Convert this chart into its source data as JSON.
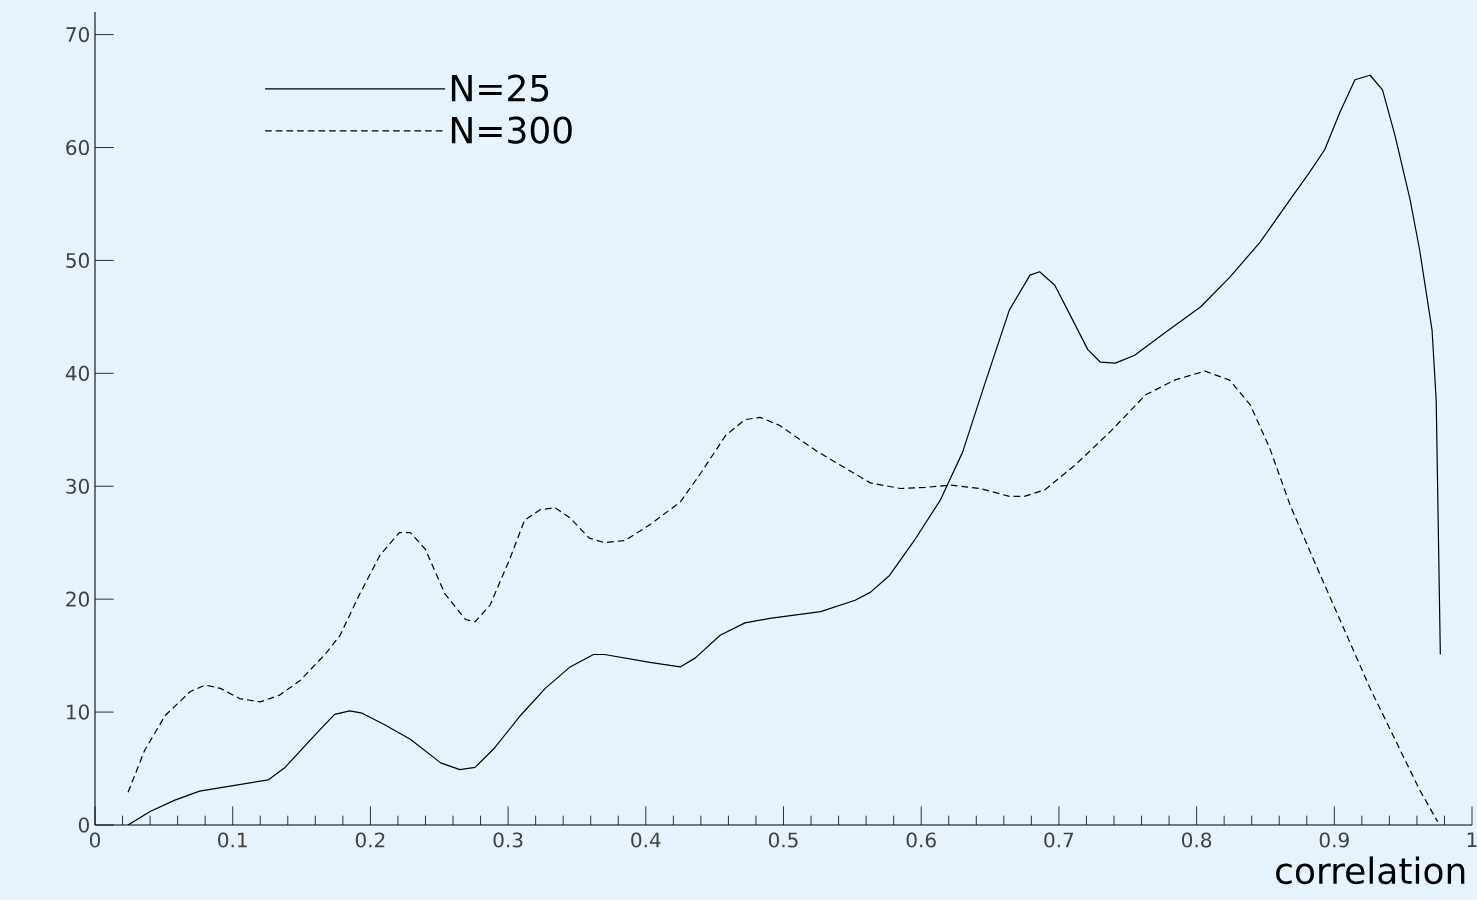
{
  "chart_data": {
    "type": "line",
    "xlabel": "correlation",
    "xlim": [
      0,
      1
    ],
    "ylim": [
      0,
      72
    ],
    "xticks": [
      0,
      0.1,
      0.2,
      0.3,
      0.4,
      0.5,
      0.6,
      0.7,
      0.8,
      0.9,
      1
    ],
    "yticks": [
      0,
      10,
      20,
      30,
      40,
      50,
      60,
      70
    ],
    "grid": false,
    "legend": "top left",
    "marker": "none",
    "series": [
      {
        "name": "N=25",
        "color": "#000000",
        "line_style": "solid",
        "x": [
          0.024,
          0.04,
          0.058,
          0.076,
          0.126,
          0.138,
          0.16,
          0.174,
          0.185,
          0.194,
          0.21,
          0.229,
          0.251,
          0.265,
          0.276,
          0.29,
          0.309,
          0.327,
          0.345,
          0.362,
          0.37,
          0.403,
          0.425,
          0.436,
          0.454,
          0.472,
          0.49,
          0.527,
          0.552,
          0.563,
          0.577,
          0.595,
          0.614,
          0.63,
          0.646,
          0.664,
          0.679,
          0.686,
          0.697,
          0.708,
          0.721,
          0.73,
          0.741,
          0.755,
          0.777,
          0.803,
          0.824,
          0.846,
          0.868,
          0.882,
          0.893,
          0.904,
          0.915,
          0.926,
          0.935,
          0.944,
          0.955,
          0.962,
          0.971,
          0.974,
          0.977
        ],
        "values": [
          0,
          1.2,
          2.2,
          3.0,
          4.0,
          5.1,
          8.0,
          9.8,
          10.1,
          9.9,
          8.9,
          7.6,
          5.5,
          4.9,
          5.1,
          6.8,
          9.7,
          12.1,
          14.0,
          15.1,
          15.1,
          14.4,
          14.0,
          14.8,
          16.8,
          17.9,
          18.3,
          18.9,
          19.9,
          20.6,
          22.1,
          25.2,
          28.8,
          33.0,
          39.0,
          45.6,
          48.7,
          49.0,
          47.8,
          45.2,
          42.1,
          41.0,
          40.9,
          41.6,
          43.6,
          45.9,
          48.5,
          51.6,
          55.4,
          57.8,
          59.8,
          63.1,
          66.0,
          66.4,
          65.1,
          61.1,
          55.4,
          50.9,
          43.8,
          37.6,
          15.1
        ]
      },
      {
        "name": "N=300",
        "color": "#000000",
        "line_style": "dashed",
        "x": [
          0.024,
          0.036,
          0.051,
          0.069,
          0.08,
          0.091,
          0.105,
          0.12,
          0.134,
          0.149,
          0.167,
          0.178,
          0.192,
          0.207,
          0.221,
          0.229,
          0.24,
          0.254,
          0.269,
          0.276,
          0.287,
          0.301,
          0.312,
          0.323,
          0.334,
          0.345,
          0.359,
          0.37,
          0.385,
          0.403,
          0.425,
          0.439,
          0.458,
          0.472,
          0.483,
          0.497,
          0.523,
          0.545,
          0.563,
          0.585,
          0.603,
          0.621,
          0.643,
          0.664,
          0.675,
          0.69,
          0.712,
          0.737,
          0.763,
          0.784,
          0.806,
          0.824,
          0.839,
          0.853,
          0.868,
          0.886,
          0.904,
          0.926,
          0.948,
          0.962,
          0.975
        ],
        "values": [
          2.9,
          6.6,
          9.7,
          11.8,
          12.4,
          12.1,
          11.2,
          10.9,
          11.5,
          12.8,
          15.1,
          16.8,
          20.4,
          23.9,
          25.9,
          25.9,
          24.4,
          20.5,
          18.2,
          18.0,
          19.5,
          23.5,
          27.0,
          27.9,
          28.1,
          27.2,
          25.4,
          25.0,
          25.2,
          26.6,
          28.6,
          31.0,
          34.5,
          35.9,
          36.1,
          35.4,
          33.2,
          31.6,
          30.3,
          29.8,
          29.9,
          30.1,
          29.8,
          29.1,
          29.1,
          29.7,
          31.9,
          34.8,
          38.1,
          39.4,
          40.2,
          39.4,
          37.2,
          33.4,
          28.3,
          23.2,
          18.2,
          12.1,
          6.6,
          3.1,
          0.3
        ]
      }
    ]
  }
}
